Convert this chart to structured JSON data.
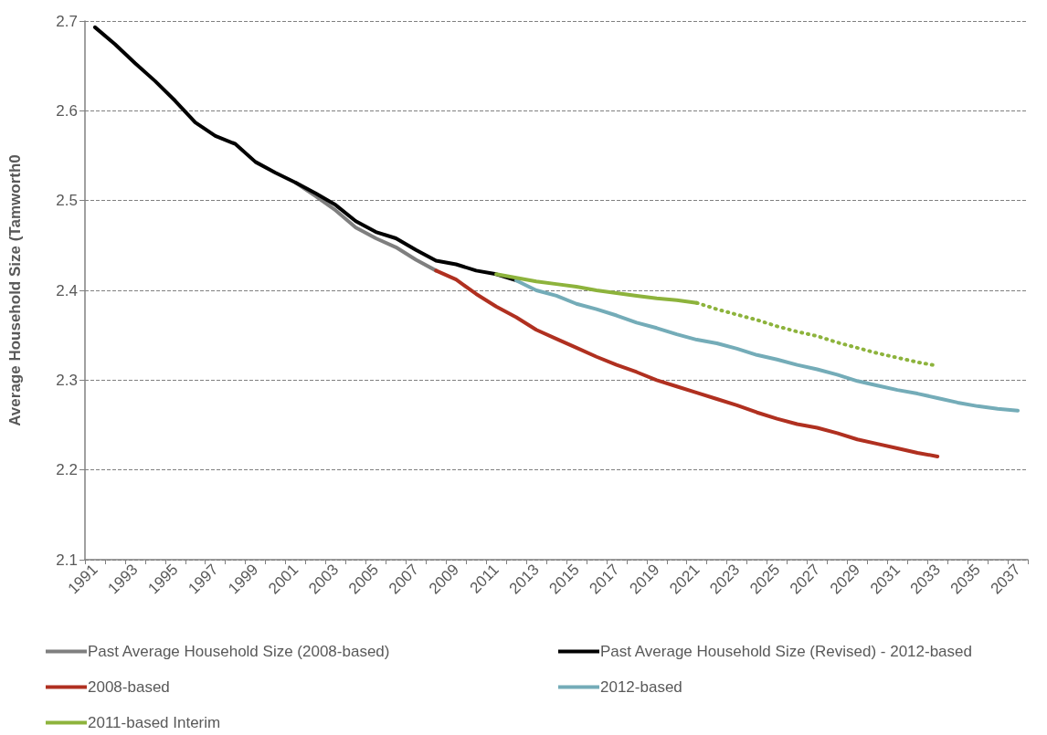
{
  "chart_data": {
    "type": "line",
    "ylabel": "Average Household Size (Tamworth0",
    "categories": [
      "1991",
      null,
      "1993",
      null,
      "1995",
      null,
      "1997",
      null,
      "1999",
      null,
      "2001",
      null,
      "2003",
      null,
      "2005",
      null,
      "2007",
      null,
      "2009",
      null,
      "2011",
      null,
      "2013",
      null,
      "2015",
      null,
      "2017",
      null,
      "2019",
      null,
      "2021",
      null,
      "2023",
      null,
      "2025",
      null,
      "2027",
      null,
      "2029",
      null,
      "2031",
      null,
      "2033",
      null,
      "2035",
      null,
      "2037"
    ],
    "ylim": [
      2.1,
      2.7
    ],
    "yticks": [
      2.1,
      2.2,
      2.3,
      2.4,
      2.5,
      2.6,
      2.7
    ],
    "grid": "y",
    "legend": "bottom",
    "marker": "none",
    "series": [
      {
        "name": "Past Average Household Size (2008-based)",
        "color": "#7f7f7f",
        "values": [
          null,
          null,
          null,
          null,
          null,
          null,
          null,
          null,
          null,
          null,
          2.52,
          2.505,
          2.489,
          2.47,
          2.458,
          2.448,
          2.434,
          2.422,
          null,
          null,
          null,
          null,
          null,
          null,
          null,
          null,
          null,
          null,
          null,
          null,
          null,
          null,
          null,
          null,
          null,
          null,
          null,
          null,
          null,
          null,
          null,
          null,
          null,
          null,
          null,
          null,
          null
        ]
      },
      {
        "name": "Past Average Household Size (Revised) - 2012-based",
        "color": "#000000",
        "values": [
          2.693,
          2.674,
          2.653,
          2.633,
          2.611,
          2.587,
          2.572,
          2.563,
          2.543,
          2.531,
          2.52,
          2.508,
          2.495,
          2.477,
          2.465,
          2.458,
          2.445,
          2.433,
          2.429,
          2.422,
          2.418,
          2.411,
          null,
          null,
          null,
          null,
          null,
          null,
          null,
          null,
          null,
          null,
          null,
          null,
          null,
          null,
          null,
          null,
          null,
          null,
          null,
          null,
          null,
          null,
          null,
          null,
          null
        ]
      },
      {
        "name": "2008-based",
        "color": "#b03020",
        "values": [
          null,
          null,
          null,
          null,
          null,
          null,
          null,
          null,
          null,
          null,
          null,
          null,
          null,
          null,
          null,
          null,
          null,
          2.422,
          2.412,
          2.396,
          2.382,
          2.37,
          2.356,
          2.346,
          2.336,
          2.326,
          2.317,
          2.309,
          2.3,
          2.293,
          2.286,
          2.279,
          2.272,
          2.264,
          2.257,
          2.251,
          2.247,
          2.241,
          2.234,
          2.229,
          2.224,
          2.219,
          2.215,
          null,
          null,
          null,
          null
        ]
      },
      {
        "name": "2012-based",
        "color": "#74acb8",
        "values": [
          null,
          null,
          null,
          null,
          null,
          null,
          null,
          null,
          null,
          null,
          null,
          null,
          null,
          null,
          null,
          null,
          null,
          null,
          null,
          null,
          null,
          2.411,
          2.4,
          2.394,
          2.385,
          2.379,
          2.372,
          2.364,
          2.358,
          2.351,
          2.345,
          2.341,
          2.335,
          2.328,
          2.323,
          2.317,
          2.312,
          2.306,
          2.299,
          2.294,
          2.289,
          2.285,
          2.28,
          2.275,
          2.271,
          2.268,
          2.266
        ]
      },
      {
        "name": "2011-based Interim",
        "color": "#8db33c",
        "values": [
          null,
          null,
          null,
          null,
          null,
          null,
          null,
          null,
          null,
          null,
          null,
          null,
          null,
          null,
          null,
          null,
          null,
          null,
          null,
          null,
          2.418,
          2.414,
          2.41,
          2.407,
          2.404,
          2.4,
          2.397,
          2.394,
          2.391,
          2.389,
          2.386,
          null,
          null,
          null,
          null,
          null,
          null,
          null,
          null,
          null,
          null,
          null,
          null,
          null,
          null,
          null,
          null
        ]
      },
      {
        "color": "#8db33c",
        "line_style": "dotted",
        "values": [
          null,
          null,
          null,
          null,
          null,
          null,
          null,
          null,
          null,
          null,
          null,
          null,
          null,
          null,
          null,
          null,
          null,
          null,
          null,
          null,
          null,
          null,
          null,
          null,
          null,
          null,
          null,
          null,
          null,
          null,
          2.386,
          2.379,
          2.373,
          2.367,
          2.36,
          2.354,
          2.349,
          2.342,
          2.336,
          2.33,
          2.325,
          2.32,
          2.316,
          null,
          null,
          null,
          null
        ]
      }
    ]
  }
}
